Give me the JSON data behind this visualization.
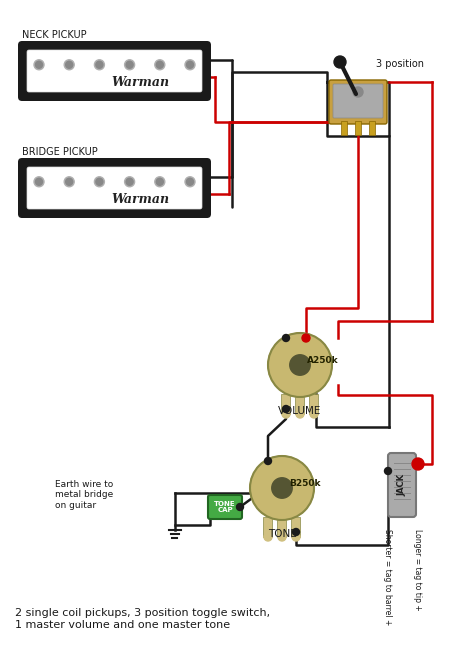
{
  "bg_color": "#ffffff",
  "line_color_black": "#1a1a1a",
  "line_color_red": "#cc0000",
  "pickup_body_color": "#1a1a1a",
  "pickup_inner_color": "#ffffff",
  "pole_color": "#aaaaaa",
  "pot_color": "#c8b870",
  "pot_edge_color": "#888844",
  "pot_inner_color": "#555533",
  "switch_body_color": "#aaaaaa",
  "switch_mount_color": "#c8a040",
  "cap_color": "#44aa44",
  "cap_edge_color": "#226622",
  "jack_color": "#aaaaaa",
  "jack_edge_color": "#777777",
  "text_color": "#1a1a1a",
  "caption": "2 single coil pickups, 3 position toggle switch,\n1 master volume and one master tone",
  "neck_label": "NECK PICKUP",
  "bridge_label": "BRIDGE PICKUP",
  "switch_label": "3 position",
  "volume_label": "VOLUME",
  "tone_label": "TONE",
  "vol_val": "A250k",
  "tone_val": "B250k",
  "jack_label": "JACK",
  "shorter_label": "Shorter = tag to barrel +",
  "longer_label": "Longer = tag to tip +",
  "earth_label": "Earth wire to\nmetal bridge\non guitar",
  "tone_cap_label": "TONE\nCAP",
  "warman_text": "Warman"
}
